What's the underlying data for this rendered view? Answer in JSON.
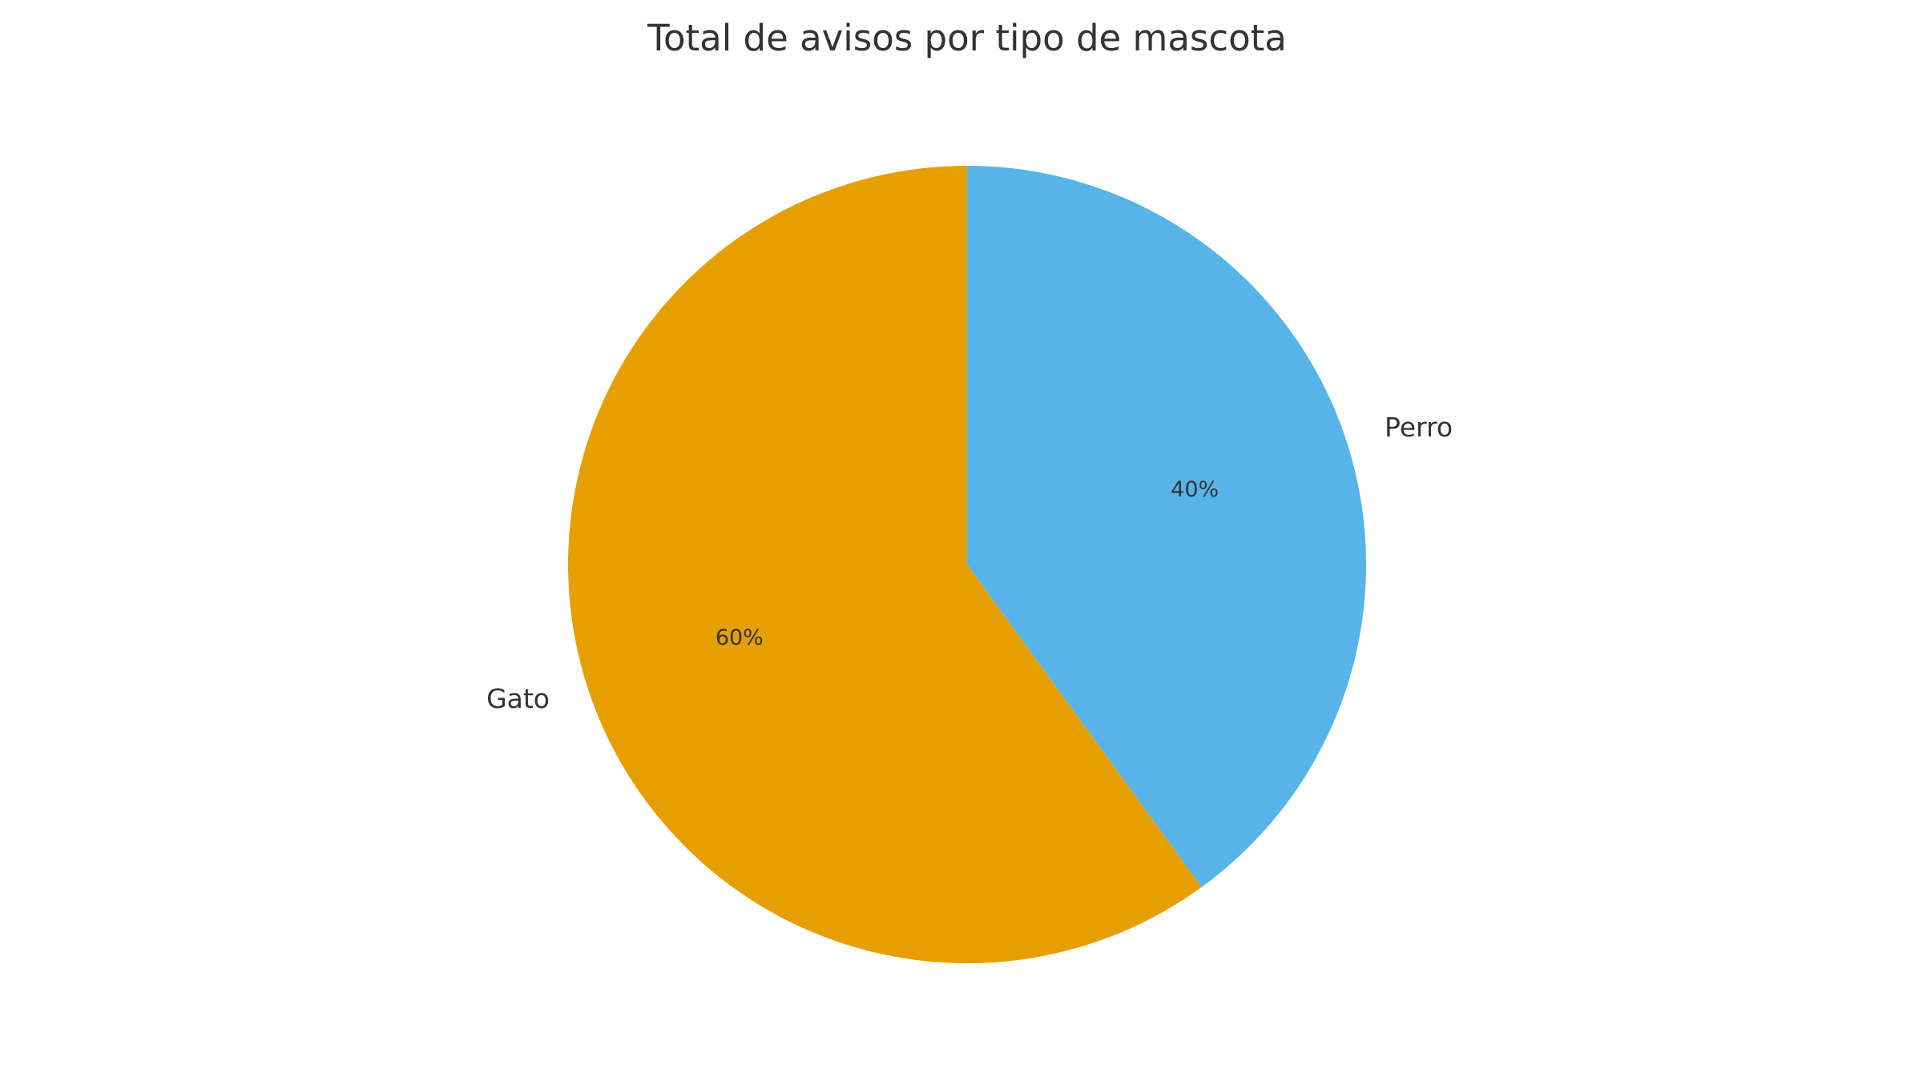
{
  "chart_data": {
    "type": "pie",
    "title": "Total de avisos por tipo de mascota",
    "slices": [
      {
        "label": "Perro",
        "value": 40,
        "pct_label": "40%",
        "color": "#56B4E9"
      },
      {
        "label": "Gato",
        "value": 60,
        "pct_label": "60%",
        "color": "#E69F00"
      }
    ],
    "start_angle": "top (12 o'clock)",
    "direction": "clockwise",
    "legend": "none"
  }
}
